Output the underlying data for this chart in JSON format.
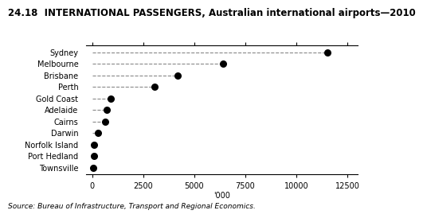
{
  "title_num": "24.18",
  "title_text": "INTERNATIONAL PASSENGERS, Australian international airports—2010",
  "categories": [
    "Sydney",
    "Melbourne",
    "Brisbane",
    "Perth",
    "Gold Coast",
    "Adelaide",
    "Cairns",
    "Darwin",
    "Norfolk Island",
    "Port Hedland",
    "Townsville"
  ],
  "values": [
    11500,
    6400,
    4200,
    3050,
    900,
    700,
    650,
    280,
    100,
    75,
    55
  ],
  "xlabel": "'000",
  "source": "Source: Bureau of Infrastructure, Transport and Regional Economics.",
  "xlim": [
    -300,
    13000
  ],
  "xticks": [
    0,
    2500,
    5000,
    7500,
    10000,
    12500
  ],
  "dot_color": "#000000",
  "dot_size": 30,
  "line_color": "#888888",
  "line_style": "--",
  "line_width": 0.8,
  "title_fontsize": 8.5,
  "label_fontsize": 7.0,
  "tick_fontsize": 7.0,
  "source_fontsize": 6.5,
  "background_color": "#ffffff"
}
